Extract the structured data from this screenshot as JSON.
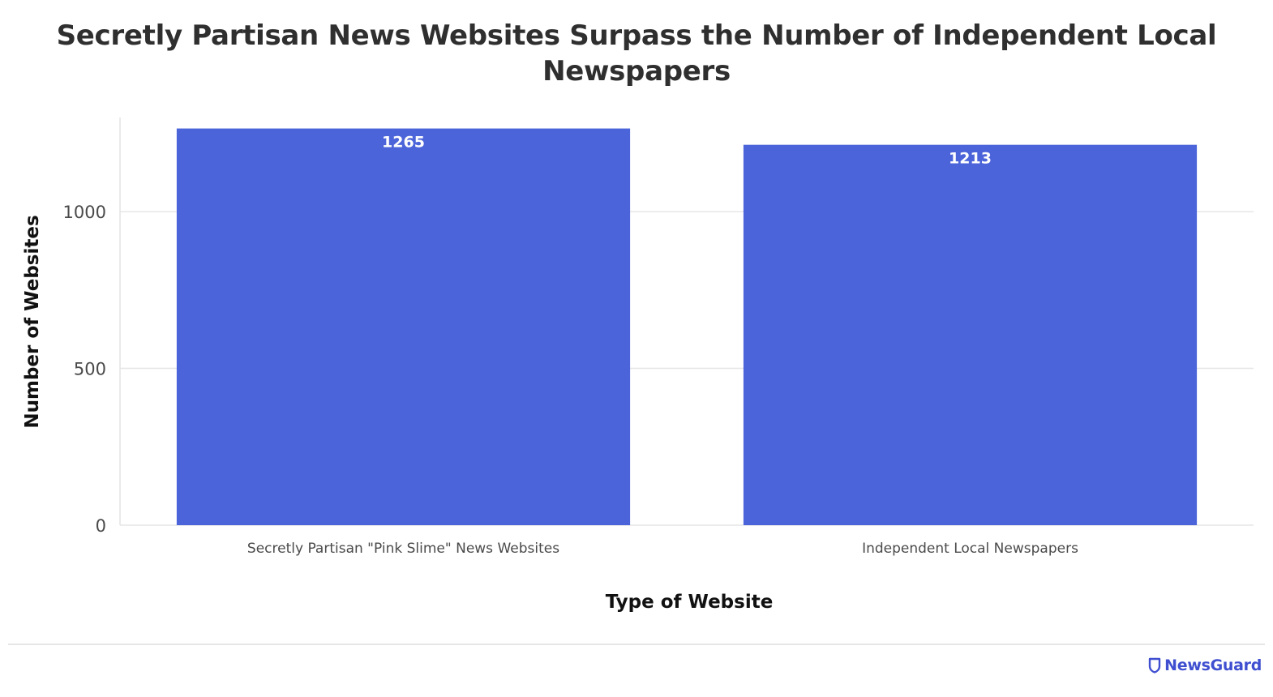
{
  "chart_data": {
    "type": "bar",
    "title": "Secretly Partisan News Websites Surpass the Number of Independent Local Newspapers",
    "xlabel": "Type of Website",
    "ylabel": "Number of Websites",
    "categories": [
      "Secretly Partisan \"Pink Slime\" News Websites",
      "Independent Local Newspapers"
    ],
    "values": [
      1265,
      1213
    ],
    "data_labels": [
      "1265",
      "1213"
    ],
    "ylim": [
      0,
      1300
    ],
    "yticks": [
      0,
      500,
      1000
    ],
    "ytick_labels": [
      "0",
      "500",
      "1000"
    ],
    "grid": true,
    "legend": "none",
    "bar_color": "#4c64d9"
  },
  "branding": {
    "name": "NewsGuard",
    "icon": "shield-icon",
    "color": "#3f4fd0"
  }
}
